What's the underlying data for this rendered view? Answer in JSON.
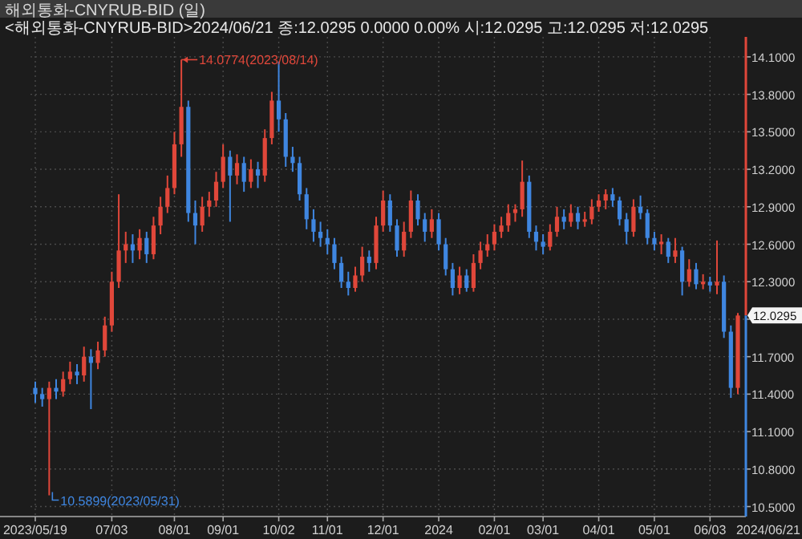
{
  "chart_data": {
    "type": "candlestick",
    "title": "해외통화-CNYRUB-BID (일)",
    "subtitle": "<해외통화-CNYRUB-BID>2024/06/21 종:12.0295 0.0000 0.00% 시:12.0295 고:12.0295 저:12.0295",
    "categories": [
      "2023/05/19",
      null,
      null,
      null,
      null,
      null,
      null,
      null,
      null,
      null,
      null,
      "07/03",
      null,
      null,
      null,
      null,
      null,
      null,
      null,
      null,
      "08/01",
      null,
      null,
      null,
      null,
      null,
      null,
      "09/01",
      null,
      null,
      null,
      null,
      null,
      null,
      null,
      "10/02",
      null,
      null,
      null,
      null,
      null,
      null,
      "11/01",
      null,
      null,
      null,
      null,
      null,
      null,
      null,
      "12/01",
      null,
      null,
      null,
      null,
      null,
      null,
      null,
      "2024",
      null,
      null,
      null,
      null,
      null,
      null,
      null,
      "02/01",
      null,
      null,
      null,
      null,
      null,
      null,
      "03/01",
      null,
      null,
      null,
      null,
      null,
      null,
      null,
      "04/01",
      null,
      null,
      null,
      null,
      null,
      null,
      null,
      "05/01",
      null,
      null,
      null,
      null,
      null,
      null,
      null,
      "06/03",
      null,
      null,
      null,
      null
    ],
    "ohlc": [
      [
        11.45,
        11.5,
        11.33,
        11.4
      ],
      [
        11.4,
        11.45,
        11.3,
        11.36
      ],
      [
        11.36,
        11.5,
        10.5899,
        11.45
      ],
      [
        11.45,
        11.52,
        11.36,
        11.42
      ],
      [
        11.42,
        11.58,
        11.38,
        11.52
      ],
      [
        11.52,
        11.66,
        11.48,
        11.58
      ],
      [
        11.58,
        11.64,
        11.48,
        11.55
      ],
      [
        11.55,
        11.78,
        11.5,
        11.7
      ],
      [
        11.7,
        11.76,
        11.28,
        11.65
      ],
      [
        11.65,
        11.82,
        11.6,
        11.75
      ],
      [
        11.75,
        12.02,
        11.7,
        11.95
      ],
      [
        11.95,
        12.38,
        11.9,
        12.3
      ],
      [
        12.3,
        13.0,
        12.25,
        12.55
      ],
      [
        12.55,
        12.7,
        12.45,
        12.6
      ],
      [
        12.6,
        12.68,
        12.45,
        12.55
      ],
      [
        12.55,
        12.72,
        12.48,
        12.65
      ],
      [
        12.65,
        12.7,
        12.45,
        12.52
      ],
      [
        12.52,
        12.82,
        12.48,
        12.75
      ],
      [
        12.75,
        12.98,
        12.68,
        12.9
      ],
      [
        12.9,
        13.15,
        12.85,
        13.05
      ],
      [
        13.05,
        13.5,
        13.0,
        13.4
      ],
      [
        13.4,
        14.0774,
        13.3,
        13.7
      ],
      [
        13.7,
        13.75,
        12.78,
        12.85
      ],
      [
        12.85,
        12.95,
        12.6,
        12.75
      ],
      [
        12.75,
        12.98,
        12.7,
        12.9
      ],
      [
        12.9,
        13.02,
        12.82,
        12.95
      ],
      [
        12.95,
        13.18,
        12.9,
        13.1
      ],
      [
        13.1,
        13.4,
        13.05,
        13.3
      ],
      [
        13.3,
        13.35,
        12.78,
        13.15
      ],
      [
        13.15,
        13.32,
        13.08,
        13.25
      ],
      [
        13.25,
        13.3,
        13.02,
        13.1
      ],
      [
        13.1,
        13.28,
        13.05,
        13.2
      ],
      [
        13.2,
        13.26,
        13.05,
        13.15
      ],
      [
        13.15,
        13.52,
        13.1,
        13.45
      ],
      [
        13.45,
        13.82,
        13.4,
        13.75
      ],
      [
        13.75,
        14.06,
        13.5,
        13.6
      ],
      [
        13.6,
        13.65,
        13.22,
        13.3
      ],
      [
        13.3,
        13.38,
        13.18,
        13.25
      ],
      [
        13.25,
        13.3,
        12.95,
        13.0
      ],
      [
        13.0,
        13.05,
        12.72,
        12.8
      ],
      [
        12.8,
        12.88,
        12.62,
        12.7
      ],
      [
        12.7,
        12.78,
        12.58,
        12.65
      ],
      [
        12.65,
        12.72,
        12.52,
        12.6
      ],
      [
        12.6,
        12.65,
        12.4,
        12.45
      ],
      [
        12.45,
        12.5,
        12.25,
        12.3
      ],
      [
        12.3,
        12.38,
        12.19,
        12.25
      ],
      [
        12.25,
        12.42,
        12.22,
        12.35
      ],
      [
        12.35,
        12.58,
        12.3,
        12.5
      ],
      [
        12.5,
        12.55,
        12.38,
        12.45
      ],
      [
        12.45,
        12.82,
        12.4,
        12.75
      ],
      [
        12.75,
        13.03,
        12.7,
        12.95
      ],
      [
        12.95,
        13.0,
        12.7,
        12.75
      ],
      [
        12.75,
        12.8,
        12.5,
        12.55
      ],
      [
        12.55,
        12.78,
        12.5,
        12.7
      ],
      [
        12.7,
        13.03,
        12.65,
        12.95
      ],
      [
        12.95,
        13.0,
        12.75,
        12.8
      ],
      [
        12.8,
        12.85,
        12.62,
        12.7
      ],
      [
        12.7,
        12.88,
        12.65,
        12.8
      ],
      [
        12.8,
        12.85,
        12.55,
        12.6
      ],
      [
        12.6,
        12.65,
        12.35,
        12.4
      ],
      [
        12.4,
        12.45,
        12.19,
        12.25
      ],
      [
        12.25,
        12.42,
        12.2,
        12.35
      ],
      [
        12.35,
        12.4,
        12.22,
        12.25
      ],
      [
        12.25,
        12.52,
        12.22,
        12.45
      ],
      [
        12.45,
        12.62,
        12.4,
        12.55
      ],
      [
        12.55,
        12.68,
        12.5,
        12.6
      ],
      [
        12.6,
        12.76,
        12.55,
        12.7
      ],
      [
        12.7,
        12.82,
        12.65,
        12.75
      ],
      [
        12.75,
        12.92,
        12.7,
        12.85
      ],
      [
        12.85,
        12.92,
        12.78,
        12.88
      ],
      [
        12.88,
        13.27,
        12.82,
        13.1
      ],
      [
        13.1,
        13.15,
        12.65,
        12.7
      ],
      [
        12.7,
        12.75,
        12.55,
        12.62
      ],
      [
        12.62,
        12.68,
        12.52,
        12.58
      ],
      [
        12.58,
        12.76,
        12.55,
        12.7
      ],
      [
        12.7,
        12.9,
        12.66,
        12.82
      ],
      [
        12.82,
        12.88,
        12.72,
        12.78
      ],
      [
        12.78,
        12.92,
        12.74,
        12.85
      ],
      [
        12.85,
        12.9,
        12.72,
        12.78
      ],
      [
        12.78,
        12.86,
        12.74,
        12.8
      ],
      [
        12.8,
        12.96,
        12.76,
        12.9
      ],
      [
        12.9,
        13.0,
        12.86,
        12.95
      ],
      [
        12.95,
        13.04,
        12.88,
        13.0
      ],
      [
        13.0,
        13.05,
        12.9,
        12.95
      ],
      [
        12.95,
        12.98,
        12.75,
        12.8
      ],
      [
        12.8,
        12.85,
        12.6,
        12.7
      ],
      [
        12.7,
        12.96,
        12.66,
        12.9
      ],
      [
        12.9,
        12.99,
        12.8,
        12.85
      ],
      [
        12.85,
        12.88,
        12.6,
        12.65
      ],
      [
        12.65,
        12.7,
        12.55,
        12.6
      ],
      [
        12.6,
        12.68,
        12.52,
        12.62
      ],
      [
        12.62,
        12.65,
        12.45,
        12.5
      ],
      [
        12.5,
        12.65,
        12.45,
        12.55
      ],
      [
        12.55,
        12.58,
        12.19,
        12.3
      ],
      [
        12.3,
        12.48,
        12.26,
        12.4
      ],
      [
        12.4,
        12.45,
        12.24,
        12.28
      ],
      [
        12.28,
        12.36,
        12.24,
        12.3
      ],
      [
        12.3,
        12.34,
        12.22,
        12.27
      ],
      [
        12.27,
        12.63,
        12.2,
        12.3
      ],
      [
        12.3,
        12.35,
        11.85,
        11.9
      ],
      [
        11.9,
        11.95,
        11.37,
        11.45
      ],
      [
        11.45,
        12.05,
        11.4,
        12.0295
      ]
    ],
    "ylim": [
      10.42,
      14.26
    ],
    "yticks": [
      {
        "value": 10.5,
        "label": "10.5000"
      },
      {
        "value": 10.8,
        "label": "10.8000"
      },
      {
        "value": 11.1,
        "label": "11.1000"
      },
      {
        "value": 11.4,
        "label": "11.4000"
      },
      {
        "value": 11.7,
        "label": "11.7000"
      },
      {
        "value": 12.0,
        "label": null
      },
      {
        "value": 12.3,
        "label": "12.3000"
      },
      {
        "value": 12.6,
        "label": "12.6000"
      },
      {
        "value": 12.9,
        "label": "12.9000"
      },
      {
        "value": 13.2,
        "label": "13.2000"
      },
      {
        "value": 13.5,
        "label": "13.5000"
      },
      {
        "value": 13.8,
        "label": "13.8000"
      },
      {
        "value": 14.1,
        "label": "14.1000"
      }
    ],
    "grid": true,
    "annotations": [
      "14.0774(2023/08/14)",
      "10.5899(2023/05/31)",
      "12.0295",
      "2024/06/21"
    ]
  }
}
